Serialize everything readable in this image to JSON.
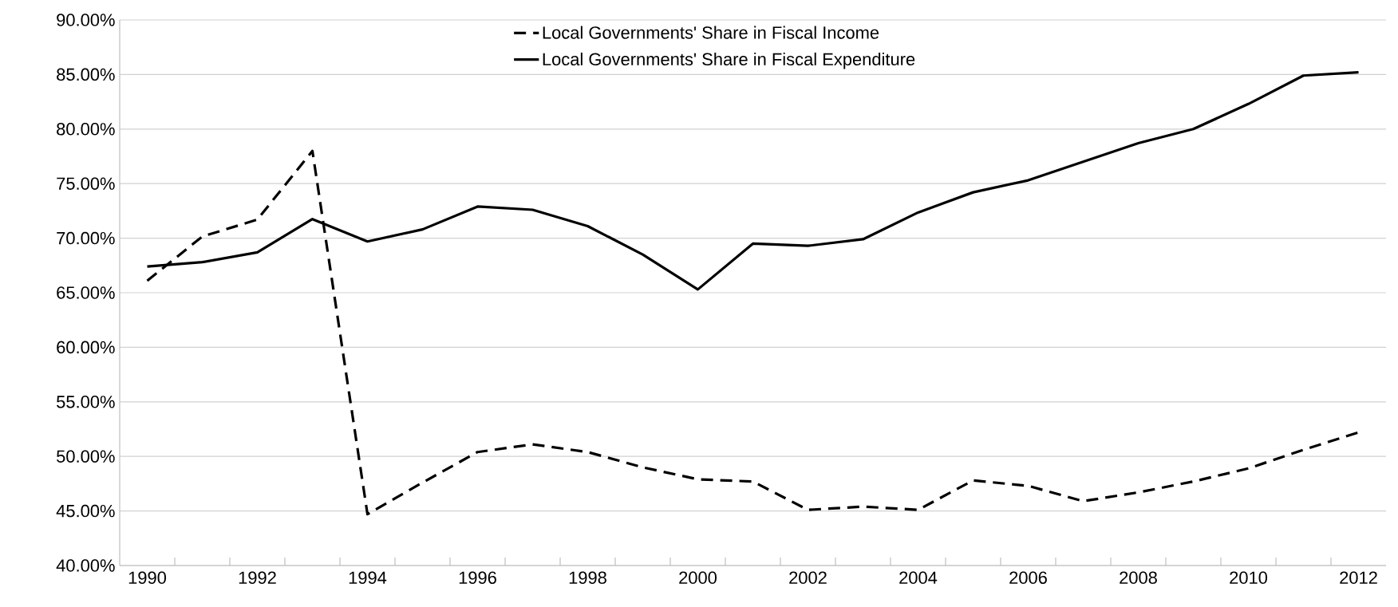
{
  "chart_data": {
    "type": "line",
    "categories": [
      "1990",
      null,
      "1992",
      null,
      "1994",
      null,
      "1996",
      null,
      "1998",
      null,
      "2000",
      null,
      "2002",
      null,
      "2004",
      null,
      "2006",
      null,
      "2008",
      null,
      "2010",
      null,
      "2012"
    ],
    "series": [
      {
        "name": "Local Governments' Share in Fiscal Income",
        "color": "#000000",
        "line_style": "dashed",
        "values": [
          66.1,
          70.15,
          71.7,
          78.0,
          44.7,
          47.6,
          50.4,
          51.1,
          50.4,
          49.0,
          47.9,
          47.7,
          45.1,
          45.4,
          45.1,
          47.8,
          47.3,
          45.9,
          46.7,
          47.7,
          48.9,
          50.6,
          52.2
        ]
      },
      {
        "name": "Local Governments' Share in Fiscal Expenditure",
        "color": "#000000",
        "line_style": "solid",
        "values": [
          67.4,
          67.8,
          68.7,
          71.75,
          69.7,
          70.8,
          72.9,
          72.6,
          71.1,
          68.5,
          65.3,
          69.5,
          69.3,
          69.9,
          72.35,
          74.2,
          75.3,
          77.0,
          78.7,
          80.0,
          82.3,
          84.9,
          85.2
        ]
      }
    ],
    "ylim": [
      40,
      90
    ],
    "yticks": [
      {
        "value": 40,
        "label": "40.00%"
      },
      {
        "value": 45,
        "label": "45.00%"
      },
      {
        "value": 50,
        "label": "50.00%"
      },
      {
        "value": 55,
        "label": "55.00%"
      },
      {
        "value": 60,
        "label": "60.00%"
      },
      {
        "value": 65,
        "label": "65.00%"
      },
      {
        "value": 70,
        "label": "70.00%"
      },
      {
        "value": 75,
        "label": "75.00%"
      },
      {
        "value": 80,
        "label": "80.00%"
      },
      {
        "value": 85,
        "label": "85.00%"
      },
      {
        "value": 90,
        "label": "90.00%"
      }
    ],
    "grid": "y",
    "legend": "top",
    "marker": "none"
  }
}
